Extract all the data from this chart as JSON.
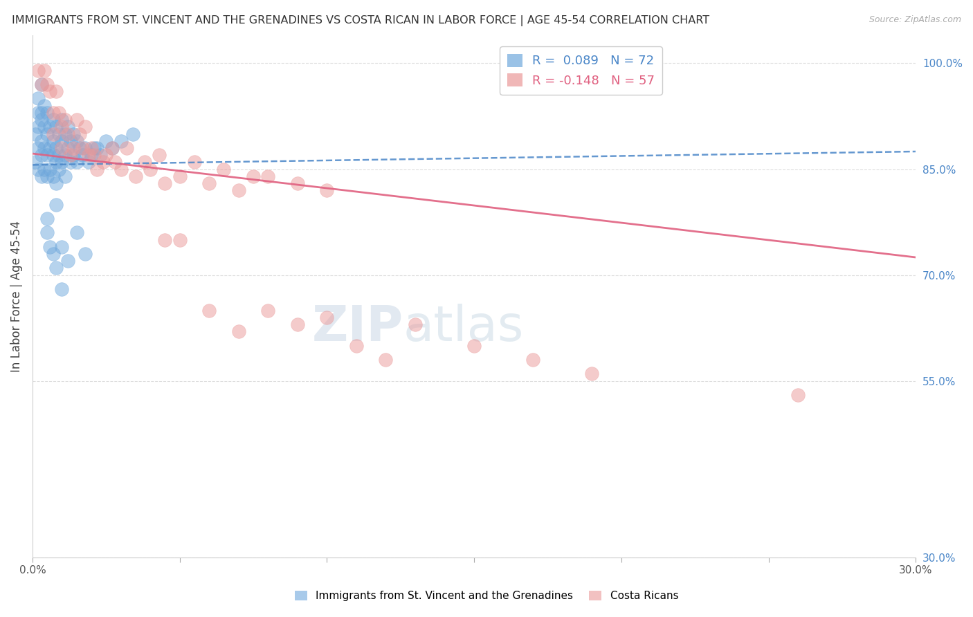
{
  "title": "IMMIGRANTS FROM ST. VINCENT AND THE GRENADINES VS COSTA RICAN IN LABOR FORCE | AGE 45-54 CORRELATION CHART",
  "source": "Source: ZipAtlas.com",
  "ylabel": "In Labor Force | Age 45-54",
  "xlim": [
    0.0,
    0.3
  ],
  "ylim": [
    0.3,
    1.04
  ],
  "yticks": [
    0.3,
    0.55,
    0.7,
    0.85,
    1.0
  ],
  "ytick_labels": [
    "30.0%",
    "55.0%",
    "70.0%",
    "85.0%",
    "100.0%"
  ],
  "xticks": [
    0.0,
    0.05,
    0.1,
    0.15,
    0.2,
    0.25,
    0.3
  ],
  "xtick_labels": [
    "0.0%",
    "",
    "",
    "",
    "",
    "",
    "30.0%"
  ],
  "blue_R": 0.089,
  "blue_N": 72,
  "pink_R": -0.148,
  "pink_N": 57,
  "blue_color": "#6fa8dc",
  "pink_color": "#ea9999",
  "blue_line_color": "#4a86c8",
  "pink_line_color": "#e06080",
  "blue_scatter_x": [
    0.001,
    0.001,
    0.002,
    0.002,
    0.002,
    0.002,
    0.003,
    0.003,
    0.003,
    0.003,
    0.004,
    0.004,
    0.004,
    0.005,
    0.005,
    0.005,
    0.005,
    0.006,
    0.006,
    0.006,
    0.007,
    0.007,
    0.007,
    0.007,
    0.008,
    0.008,
    0.008,
    0.008,
    0.009,
    0.009,
    0.009,
    0.01,
    0.01,
    0.01,
    0.011,
    0.011,
    0.011,
    0.012,
    0.012,
    0.013,
    0.013,
    0.014,
    0.014,
    0.015,
    0.015,
    0.016,
    0.017,
    0.018,
    0.019,
    0.02,
    0.021,
    0.022,
    0.023,
    0.025,
    0.027,
    0.03,
    0.034,
    0.002,
    0.003,
    0.004,
    0.005,
    0.006,
    0.007,
    0.008,
    0.01,
    0.012,
    0.015,
    0.018,
    0.008,
    0.01,
    0.005,
    0.003
  ],
  "blue_scatter_y": [
    0.9,
    0.86,
    0.93,
    0.91,
    0.88,
    0.85,
    0.92,
    0.89,
    0.87,
    0.84,
    0.91,
    0.88,
    0.85,
    0.93,
    0.9,
    0.87,
    0.84,
    0.91,
    0.88,
    0.85,
    0.92,
    0.89,
    0.87,
    0.84,
    0.91,
    0.88,
    0.86,
    0.83,
    0.9,
    0.87,
    0.85,
    0.92,
    0.89,
    0.86,
    0.9,
    0.87,
    0.84,
    0.91,
    0.88,
    0.89,
    0.86,
    0.9,
    0.87,
    0.89,
    0.86,
    0.88,
    0.87,
    0.88,
    0.86,
    0.87,
    0.88,
    0.88,
    0.87,
    0.89,
    0.88,
    0.89,
    0.9,
    0.95,
    0.93,
    0.94,
    0.76,
    0.74,
    0.73,
    0.71,
    0.74,
    0.72,
    0.76,
    0.73,
    0.8,
    0.68,
    0.78,
    0.97
  ],
  "pink_scatter_x": [
    0.002,
    0.003,
    0.004,
    0.005,
    0.006,
    0.007,
    0.007,
    0.008,
    0.009,
    0.01,
    0.01,
    0.011,
    0.012,
    0.013,
    0.014,
    0.015,
    0.016,
    0.017,
    0.018,
    0.019,
    0.02,
    0.021,
    0.022,
    0.024,
    0.025,
    0.027,
    0.028,
    0.03,
    0.032,
    0.035,
    0.038,
    0.04,
    0.043,
    0.045,
    0.05,
    0.055,
    0.06,
    0.065,
    0.07,
    0.075,
    0.08,
    0.09,
    0.1,
    0.045,
    0.05,
    0.06,
    0.07,
    0.08,
    0.09,
    0.1,
    0.11,
    0.12,
    0.13,
    0.15,
    0.17,
    0.19,
    0.26
  ],
  "pink_scatter_y": [
    0.99,
    0.97,
    0.99,
    0.97,
    0.96,
    0.93,
    0.9,
    0.96,
    0.93,
    0.91,
    0.88,
    0.92,
    0.9,
    0.87,
    0.88,
    0.92,
    0.9,
    0.88,
    0.91,
    0.87,
    0.88,
    0.87,
    0.85,
    0.86,
    0.87,
    0.88,
    0.86,
    0.85,
    0.88,
    0.84,
    0.86,
    0.85,
    0.87,
    0.83,
    0.84,
    0.86,
    0.83,
    0.85,
    0.82,
    0.84,
    0.84,
    0.83,
    0.82,
    0.75,
    0.75,
    0.65,
    0.62,
    0.65,
    0.63,
    0.64,
    0.6,
    0.58,
    0.63,
    0.6,
    0.58,
    0.56,
    0.53
  ],
  "blue_line_x": [
    0.0,
    0.3
  ],
  "blue_line_y": [
    0.856,
    0.875
  ],
  "pink_line_x": [
    0.0,
    0.3
  ],
  "pink_line_y": [
    0.872,
    0.725
  ],
  "watermark_zip": "ZIP",
  "watermark_atlas": "atlas",
  "background_color": "#ffffff",
  "grid_color": "#dddddd"
}
